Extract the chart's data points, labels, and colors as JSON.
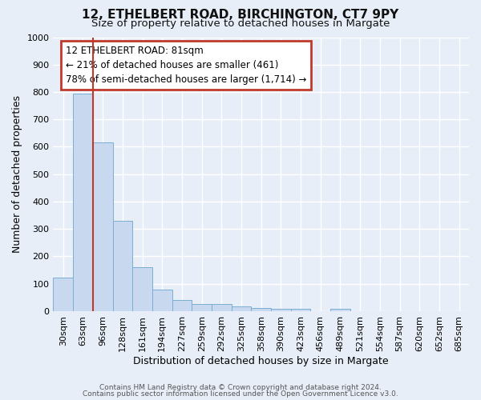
{
  "title_line1": "12, ETHELBERT ROAD, BIRCHINGTON, CT7 9PY",
  "title_line2": "Size of property relative to detached houses in Margate",
  "xlabel": "Distribution of detached houses by size in Margate",
  "ylabel": "Number of detached properties",
  "bar_labels": [
    "30sqm",
    "63sqm",
    "96sqm",
    "128sqm",
    "161sqm",
    "194sqm",
    "227sqm",
    "259sqm",
    "292sqm",
    "325sqm",
    "358sqm",
    "390sqm",
    "423sqm",
    "456sqm",
    "489sqm",
    "521sqm",
    "554sqm",
    "587sqm",
    "620sqm",
    "652sqm",
    "685sqm"
  ],
  "bar_heights": [
    122,
    795,
    617,
    330,
    160,
    78,
    40,
    27,
    25,
    18,
    13,
    8,
    8,
    0,
    10,
    0,
    0,
    0,
    0,
    0,
    0
  ],
  "bar_color": "#c8d8ee",
  "bar_edge_color": "#7aaed4",
  "vline_x": 1.5,
  "vline_color": "#c0392b",
  "ylim": [
    0,
    1000
  ],
  "yticks": [
    0,
    100,
    200,
    300,
    400,
    500,
    600,
    700,
    800,
    900,
    1000
  ],
  "annotation_line1": "12 ETHELBERT ROAD: 81sqm",
  "annotation_line2": "← 21% of detached houses are smaller (461)",
  "annotation_line3": "78% of semi-detached houses are larger (1,714) →",
  "annotation_box_color": "#c0392b",
  "footer_line1": "Contains HM Land Registry data © Crown copyright and database right 2024.",
  "footer_line2": "Contains public sector information licensed under the Open Government Licence v3.0.",
  "bg_color": "#e8eef8",
  "grid_color": "#ffffff",
  "title1_fontsize": 11,
  "title2_fontsize": 9.5,
  "tick_fontsize": 8,
  "label_fontsize": 9
}
